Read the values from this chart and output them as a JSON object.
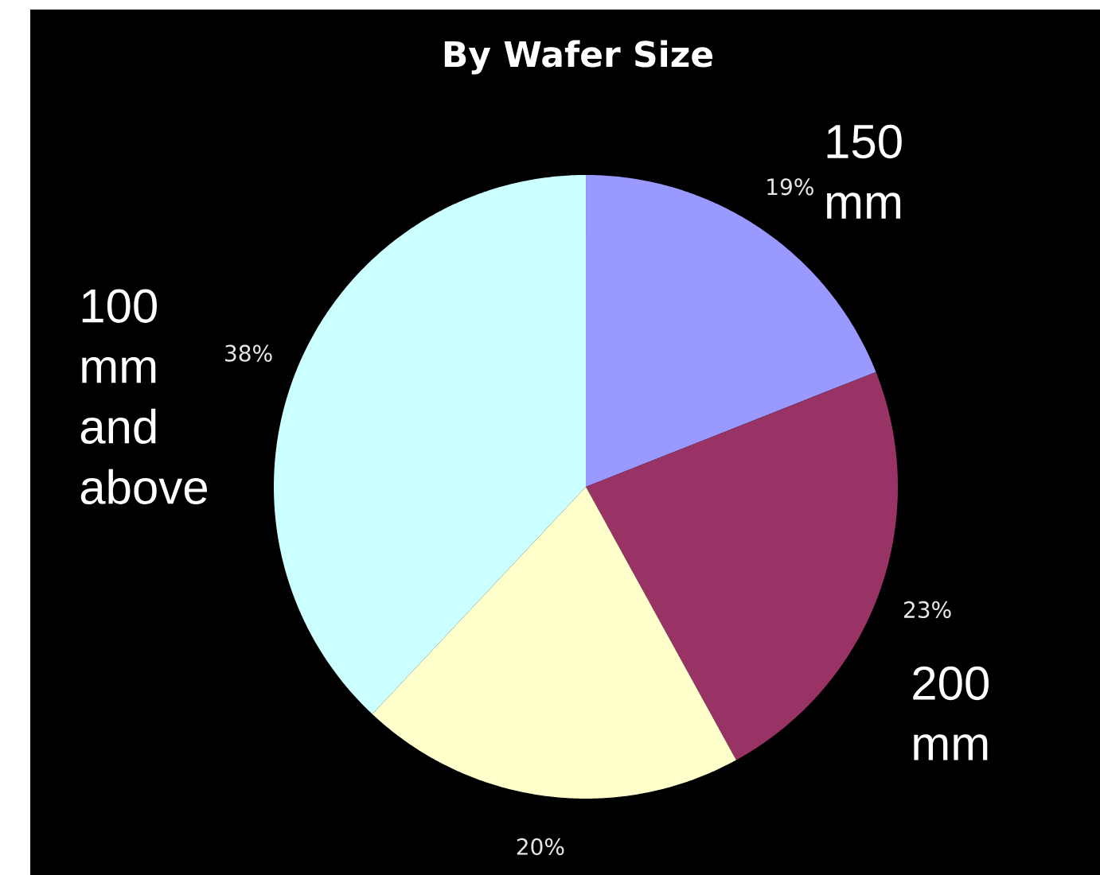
{
  "chart_data": {
    "type": "pie",
    "title": "By Wafer Size",
    "categories": [
      "150 mm",
      "200 mm",
      null,
      "100 mm and above"
    ],
    "values": [
      19,
      23,
      20,
      38
    ],
    "colors": [
      "#9999ff",
      "#993366",
      "#ffffcc",
      "#ccffff"
    ],
    "value_labels": [
      "19%",
      "23%",
      "20%",
      "38%"
    ]
  }
}
